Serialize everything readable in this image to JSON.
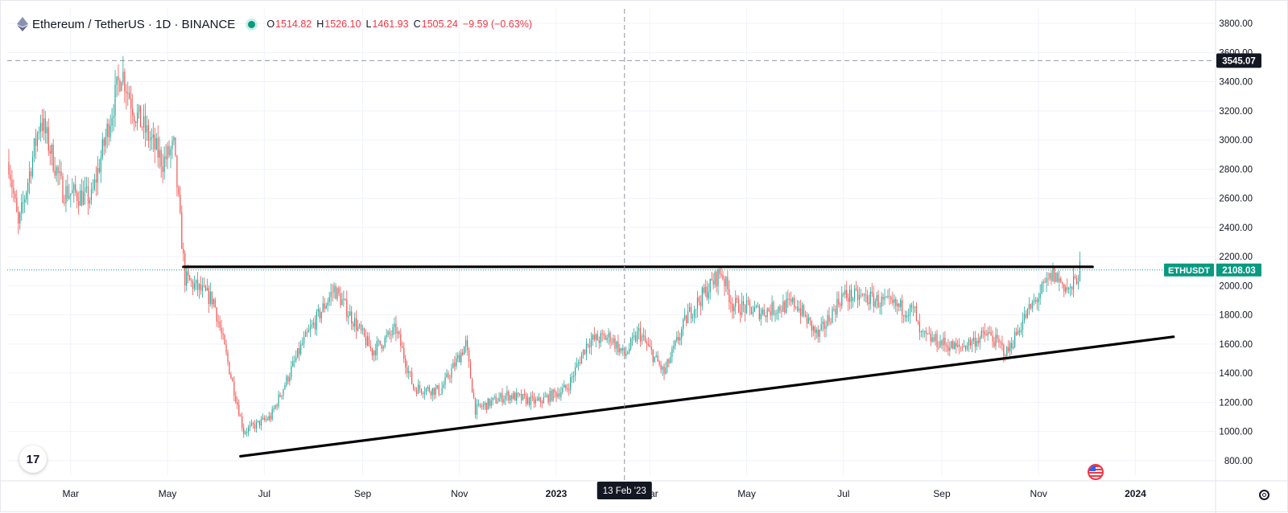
{
  "header": {
    "symbol": "Ethereum / TetherUS · 1D · BINANCE",
    "open_label": "O",
    "open": "1514.82",
    "high_label": "H",
    "high": "1526.10",
    "low_label": "L",
    "low": "1461.93",
    "close_label": "C",
    "close": "1505.24",
    "change": "−9.59 (−0.63%)"
  },
  "crosshair": {
    "price_label": "3545.07",
    "date_label": "13 Feb '23"
  },
  "last_price": {
    "ticker": "ETHUSDT",
    "value": "2108.03"
  },
  "colors": {
    "up": "#26a69a",
    "down": "#ef5350",
    "ticker_bg": "#089981",
    "crosshair_label_bg": "#131722",
    "trendline": "#000000"
  },
  "chart_data": {
    "type": "candlestick",
    "title": "Ethereum / TetherUS · 1D · BINANCE",
    "xlabel": "",
    "ylabel": "",
    "ylim": [
      700,
      3900
    ],
    "y_ticks": [
      800,
      1000,
      1200,
      1400,
      1600,
      1800,
      2000,
      2200,
      2400,
      2600,
      2800,
      3000,
      3200,
      3400,
      3600,
      3800
    ],
    "x_ticks": [
      "Mar",
      "May",
      "Jul",
      "Sep",
      "Nov",
      "2023",
      "Mar",
      "May",
      "Jul",
      "Sep",
      "Nov",
      "2024"
    ],
    "x_range": [
      "2022-01-20",
      "2024-02-20"
    ],
    "grid": true,
    "price_path": [
      {
        "date": "2022-01-21",
        "price": 2850
      },
      {
        "date": "2022-01-27",
        "price": 2400
      },
      {
        "date": "2022-02-10",
        "price": 3150
      },
      {
        "date": "2022-02-24",
        "price": 2650
      },
      {
        "date": "2022-03-14",
        "price": 2600
      },
      {
        "date": "2022-04-02",
        "price": 3480
      },
      {
        "date": "2022-04-10",
        "price": 3200
      },
      {
        "date": "2022-04-28",
        "price": 2850
      },
      {
        "date": "2022-05-05",
        "price": 2950
      },
      {
        "date": "2022-05-12",
        "price": 2050
      },
      {
        "date": "2022-05-30",
        "price": 1900
      },
      {
        "date": "2022-06-18",
        "price": 1000
      },
      {
        "date": "2022-07-05",
        "price": 1100
      },
      {
        "date": "2022-07-25",
        "price": 1600
      },
      {
        "date": "2022-08-14",
        "price": 1980
      },
      {
        "date": "2022-09-07",
        "price": 1550
      },
      {
        "date": "2022-09-22",
        "price": 1700
      },
      {
        "date": "2022-10-03",
        "price": 1300
      },
      {
        "date": "2022-10-20",
        "price": 1280
      },
      {
        "date": "2022-11-05",
        "price": 1600
      },
      {
        "date": "2022-11-11",
        "price": 1150
      },
      {
        "date": "2022-12-01",
        "price": 1250
      },
      {
        "date": "2022-12-20",
        "price": 1200
      },
      {
        "date": "2023-01-08",
        "price": 1300
      },
      {
        "date": "2023-01-21",
        "price": 1620
      },
      {
        "date": "2023-02-04",
        "price": 1650
      },
      {
        "date": "2023-02-13",
        "price": 1520
      },
      {
        "date": "2023-02-22",
        "price": 1680
      },
      {
        "date": "2023-03-10",
        "price": 1400
      },
      {
        "date": "2023-03-25",
        "price": 1800
      },
      {
        "date": "2023-04-15",
        "price": 2100
      },
      {
        "date": "2023-04-22",
        "price": 1870
      },
      {
        "date": "2023-05-10",
        "price": 1820
      },
      {
        "date": "2023-06-01",
        "price": 1880
      },
      {
        "date": "2023-06-15",
        "price": 1650
      },
      {
        "date": "2023-06-30",
        "price": 1930
      },
      {
        "date": "2023-07-15",
        "price": 1920
      },
      {
        "date": "2023-08-15",
        "price": 1820
      },
      {
        "date": "2023-08-18",
        "price": 1660
      },
      {
        "date": "2023-09-11",
        "price": 1570
      },
      {
        "date": "2023-09-30",
        "price": 1670
      },
      {
        "date": "2023-10-12",
        "price": 1540
      },
      {
        "date": "2023-10-23",
        "price": 1780
      },
      {
        "date": "2023-11-10",
        "price": 2080
      },
      {
        "date": "2023-11-21",
        "price": 1960
      },
      {
        "date": "2023-11-27",
        "price": 2108
      }
    ],
    "horizontal_lines": [
      {
        "price": 3545.07,
        "style": "dashed"
      },
      {
        "price": 2108.03,
        "style": "dotted"
      }
    ],
    "trendlines": [
      {
        "from": {
          "date": "2022-05-11",
          "price": 2130
        },
        "to": {
          "date": "2023-12-05",
          "price": 2130
        }
      },
      {
        "from": {
          "date": "2022-06-16",
          "price": 830
        },
        "to": {
          "date": "2024-01-25",
          "price": 1650
        }
      }
    ],
    "crosshair_date": "2023-02-13",
    "crosshair_price": 3545.07
  }
}
